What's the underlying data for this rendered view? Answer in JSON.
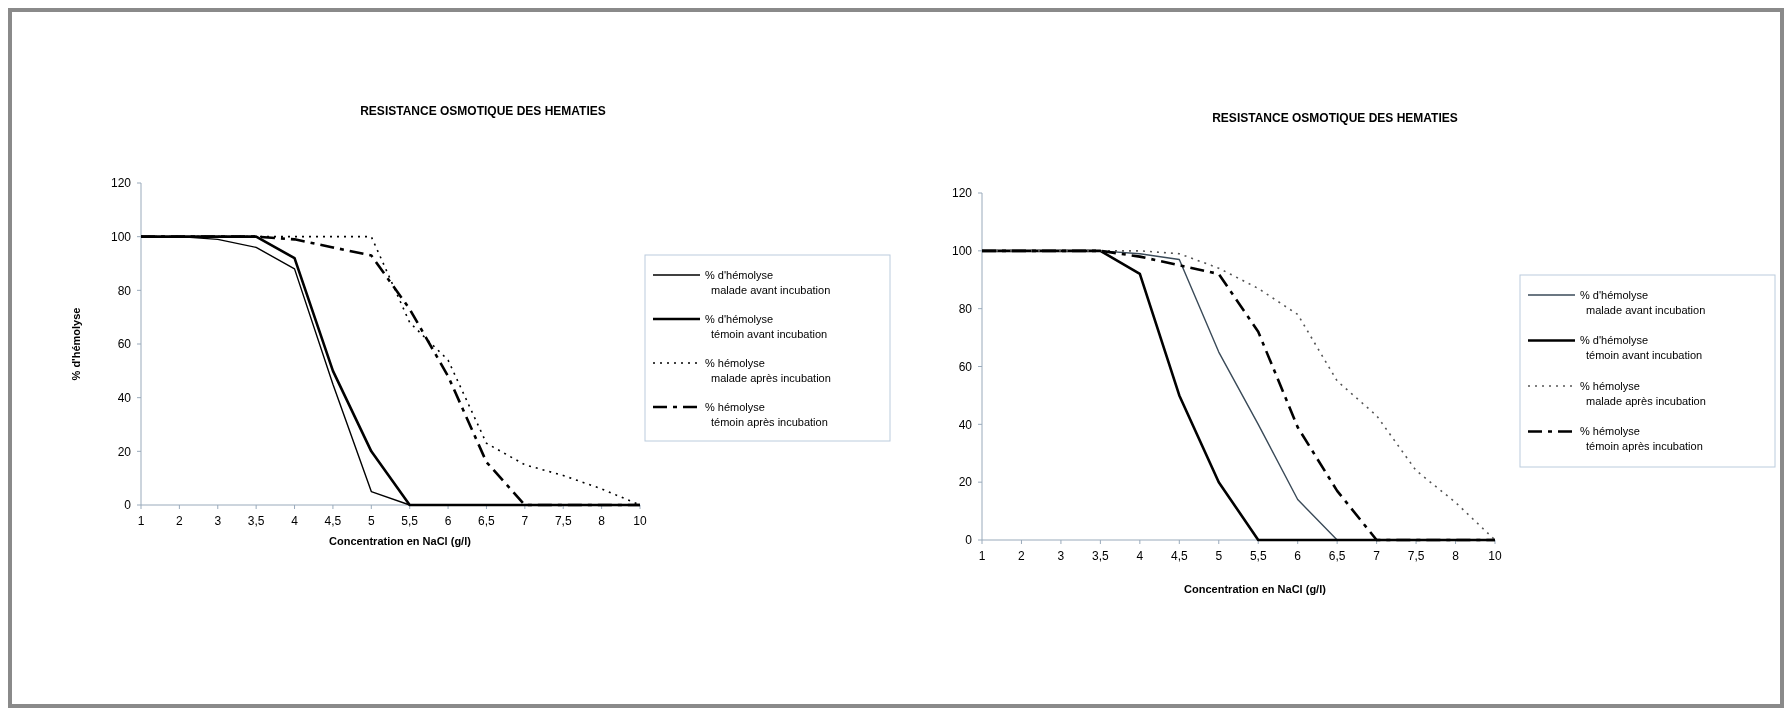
{
  "chart_data": [
    {
      "type": "line",
      "title": "RESISTANCE OSMOTIQUE DES HEMATIES",
      "xlabel": "Concentration en NaCl (g/l)",
      "ylabel": "% d'hémolyse",
      "categories": [
        "1",
        "2",
        "3",
        "3,5",
        "4",
        "4,5",
        "5",
        "5,5",
        "6",
        "6,5",
        "7",
        "7,5",
        "8",
        "10"
      ],
      "ylim": [
        0,
        120
      ],
      "yticks": [
        0,
        20,
        40,
        60,
        80,
        100,
        120
      ],
      "grid": false,
      "legend": "right",
      "series": [
        {
          "name": "% d'hémolyse malade avant incubation",
          "color": "#000000",
          "line_style": "solid",
          "values": [
            100,
            100,
            99,
            96,
            88,
            45,
            5,
            0,
            0,
            0,
            0,
            0,
            0,
            0
          ]
        },
        {
          "name": "% d'hémolyse témoin avant incubation",
          "color": "#000000",
          "line_style": "solid",
          "values": [
            100,
            100,
            100,
            100,
            92,
            50,
            20,
            0,
            0,
            0,
            0,
            0,
            0,
            0
          ]
        },
        {
          "name": "% hémolyse malade après incubation",
          "color": "#000000",
          "line_style": "dotted",
          "values": [
            100,
            100,
            100,
            100,
            100,
            100,
            100,
            68,
            54,
            23,
            15,
            11,
            6,
            0
          ]
        },
        {
          "name": "% hémolyse témoin après incubation",
          "color": "#000000",
          "line_style": "dashed",
          "values": [
            100,
            100,
            100,
            100,
            99,
            96,
            93,
            73,
            48,
            16,
            0,
            0,
            0,
            0
          ]
        }
      ]
    },
    {
      "type": "line",
      "title": "RESISTANCE OSMOTIQUE DES HEMATIES",
      "xlabel": "Concentration en NaCl (g/l)",
      "categories": [
        "1",
        "2",
        "3",
        "3,5",
        "4",
        "4,5",
        "5",
        "5,5",
        "6",
        "6,5",
        "7",
        "7,5",
        "8",
        "10"
      ],
      "ylim": [
        0,
        120
      ],
      "yticks": [
        0,
        20,
        40,
        60,
        80,
        100,
        120
      ],
      "grid": false,
      "legend": "right",
      "series": [
        {
          "name": "% d'hémolyse malade avant incubation",
          "color": "#3a4a58",
          "line_style": "solid",
          "values": [
            100,
            100,
            100,
            100,
            99,
            97,
            65,
            40,
            14,
            0,
            0,
            0,
            0,
            0
          ]
        },
        {
          "name": "% d'hémolyse témoin avant incubation",
          "color": "#000000",
          "line_style": "solid",
          "values": [
            100,
            100,
            100,
            100,
            92,
            50,
            20,
            0,
            0,
            0,
            0,
            0,
            0,
            0
          ]
        },
        {
          "name": "% hémolyse malade après incubation",
          "color": "#555555",
          "line_style": "dotted",
          "values": [
            100,
            100,
            100,
            100,
            100,
            99,
            94,
            87,
            78,
            55,
            43,
            24,
            13,
            0
          ]
        },
        {
          "name": "% hémolyse témoin après incubation",
          "color": "#000000",
          "line_style": "dashed",
          "values": [
            100,
            100,
            100,
            100,
            98,
            95,
            92,
            72,
            39,
            17,
            0,
            0,
            0,
            0
          ]
        }
      ]
    }
  ]
}
